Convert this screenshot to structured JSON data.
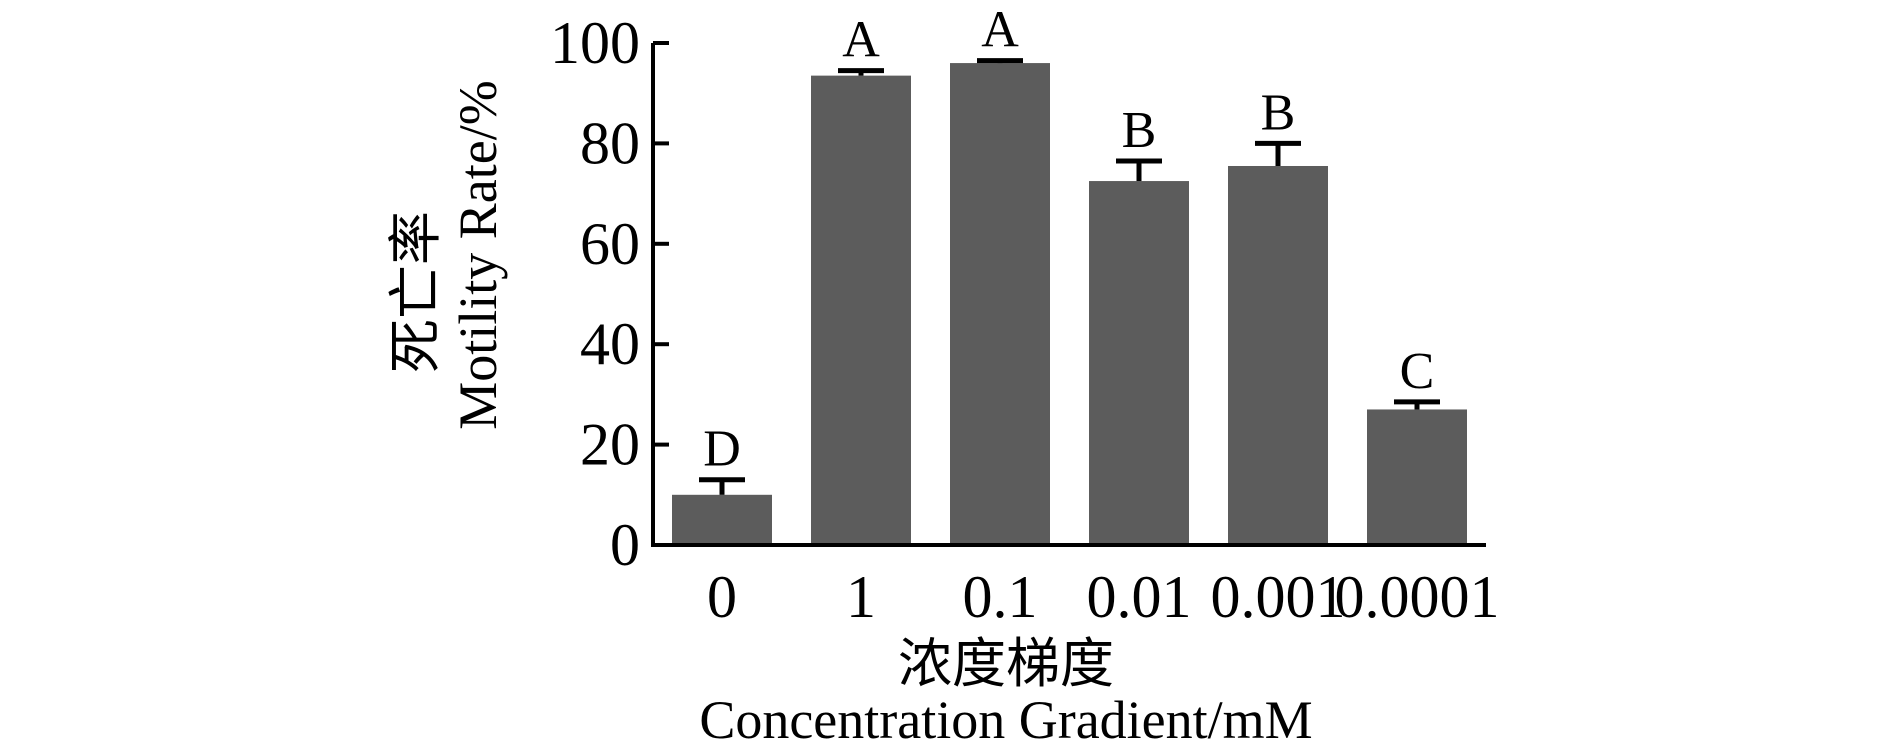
{
  "chart_data": {
    "type": "bar",
    "categories": [
      "0",
      "1",
      "0.1",
      "0.01",
      "0.001",
      "0.0001"
    ],
    "values": [
      10,
      93.5,
      96,
      72.5,
      75.5,
      27
    ],
    "errors": [
      3,
      1,
      0.5,
      4,
      4.5,
      1.5
    ],
    "significance": [
      "D",
      "A",
      "A",
      "B",
      "B",
      "C"
    ],
    "xlabel_cn": "浓度梯度",
    "xlabel_en": "Concentration Gradient/mM",
    "ylabel_cn": "死亡率",
    "ylabel_en": "Motility Rate/%",
    "yticks": [
      0,
      20,
      40,
      60,
      80,
      100
    ],
    "ylim": [
      0,
      100
    ],
    "grid": false,
    "bar_color": "#5c5c5c"
  }
}
